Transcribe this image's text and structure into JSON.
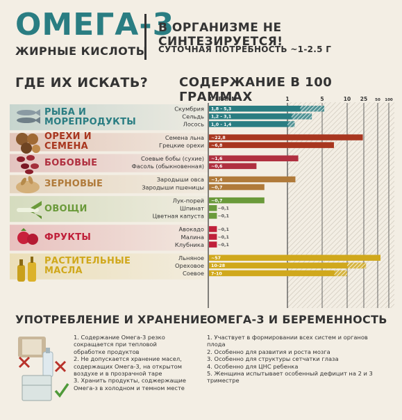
{
  "header": {
    "title": "ОМЕГА-3",
    "subtitle": "ЖИРНЫЕ КИСЛОТЫ",
    "fact": "В ОРГАНИЗМЕ НЕ СИНТЕЗИРУЕТСЯ!",
    "need": "СУТОЧНАЯ ПОТРЕБНОСТЬ ~1-2.5 Г"
  },
  "sections": {
    "where": "ГДЕ ИХ ИСКАТЬ?",
    "content": "СОДЕРЖАНИЕ В 100 ГРАММАХ",
    "usage": "УПОТРЕБЛЕНИЕ И ХРАНЕНИЕ",
    "pregnancy": "ОМЕГА-3 И БЕРЕМЕННОСТЬ"
  },
  "colors": {
    "fish": "#2a7d82",
    "nuts": "#a8361f",
    "beans": "#b03040",
    "grains": "#b07a3a",
    "veg": "#6a9a3a",
    "fruit": "#c0203a",
    "oils": "#d0a81c"
  },
  "chart_data": {
    "type": "bar",
    "orientation": "horizontal",
    "scale": "log",
    "axis_ticks": [
      "0 ГРАММ",
      "1",
      "5",
      "10",
      "25",
      "50",
      "100"
    ],
    "tick_values": [
      0,
      1,
      5,
      10,
      25,
      50,
      100
    ],
    "groups": [
      {
        "name": "РЫБА И МОРЕПРОДУКТЫ",
        "icon": "fish-icon",
        "color_key": "fish",
        "items": [
          {
            "label": "Скумбрия",
            "value_text": "1,8 - 5,3",
            "min": 1.8,
            "max": 5.3
          },
          {
            "label": "Сельдь",
            "value_text": "1,2 - 3,1",
            "min": 1.2,
            "max": 3.1
          },
          {
            "label": "Лосось",
            "value_text": "1,0 - 1,4",
            "min": 1.0,
            "max": 1.4
          }
        ]
      },
      {
        "name": "ОРЕХИ И СЕМЕНА",
        "icon": "nut-icon",
        "color_key": "nuts",
        "items": [
          {
            "label": "Семена льна",
            "value_text": "~22,8",
            "value": 22.8
          },
          {
            "label": "Грецкие орехи",
            "value_text": "~6,8",
            "value": 6.8
          }
        ]
      },
      {
        "name": "БОБОВЫЕ",
        "icon": "bean-icon",
        "color_key": "beans",
        "items": [
          {
            "label": "Соевые бобы (сухие)",
            "value_text": "~1,6",
            "value": 1.6
          },
          {
            "label": "Фасоль (обыкновенная)",
            "value_text": "~0,6",
            "value": 0.6
          }
        ]
      },
      {
        "name": "ЗЕРНОВЫЕ",
        "icon": "grain-icon",
        "color_key": "grains",
        "items": [
          {
            "label": "Зародыши овса",
            "value_text": "~1,4",
            "value": 1.4
          },
          {
            "label": "Зародыши пшеницы",
            "value_text": "~0,7",
            "value": 0.7
          }
        ]
      },
      {
        "name": "ОВОЩИ",
        "icon": "leek-icon",
        "color_key": "veg",
        "items": [
          {
            "label": "Лук-порей",
            "value_text": "~0,7",
            "value": 0.7
          },
          {
            "label": "Шпинат",
            "value_text": "~0,1",
            "value": 0.1
          },
          {
            "label": "Цветная капуста",
            "value_text": "~0,1",
            "value": 0.1
          }
        ]
      },
      {
        "name": "ФРУКТЫ",
        "icon": "raspberry-icon",
        "color_key": "fruit",
        "items": [
          {
            "label": "Авокадо",
            "value_text": "~0,1",
            "value": 0.1
          },
          {
            "label": "Малина",
            "value_text": "~0,1",
            "value": 0.1
          },
          {
            "label": "Клубника",
            "value_text": "~0,1",
            "value": 0.1
          }
        ]
      },
      {
        "name": "РАСТИТЕЛЬНЫЕ МАСЛА",
        "icon": "oil-bottle-icon",
        "color_key": "oils",
        "items": [
          {
            "label": "Льняное",
            "value_text": "~57",
            "value": 57
          },
          {
            "label": "Ореховое",
            "value_text": "10-28",
            "min": 10,
            "max": 28
          },
          {
            "label": "Соевое",
            "value_text": "7-10",
            "min": 7,
            "max": 10
          }
        ]
      }
    ]
  },
  "usage_list": [
    "1. Содержание Омега-3 резко",
    "сокращается при тепловой",
    "обработке продуктов",
    "2. Не допускается хранение масел,",
    "содержащих Омега-3, на открытом",
    "воздухе и в прозрачной таре",
    "3. Хранить продукты, соджержащие",
    "Омега-з в холодном и темном месте"
  ],
  "pregnancy_list": [
    "1. Участвует в формировании всех систем и органов",
    "плода",
    "2. Особенно для развития и роста мозга",
    "3. Особенно для структуры сетчатки глаза",
    "4. Особенно для ЦНС ребенка",
    "5. Женщина испытывает особенный дефицит на 2 и 3",
    "триместре"
  ]
}
